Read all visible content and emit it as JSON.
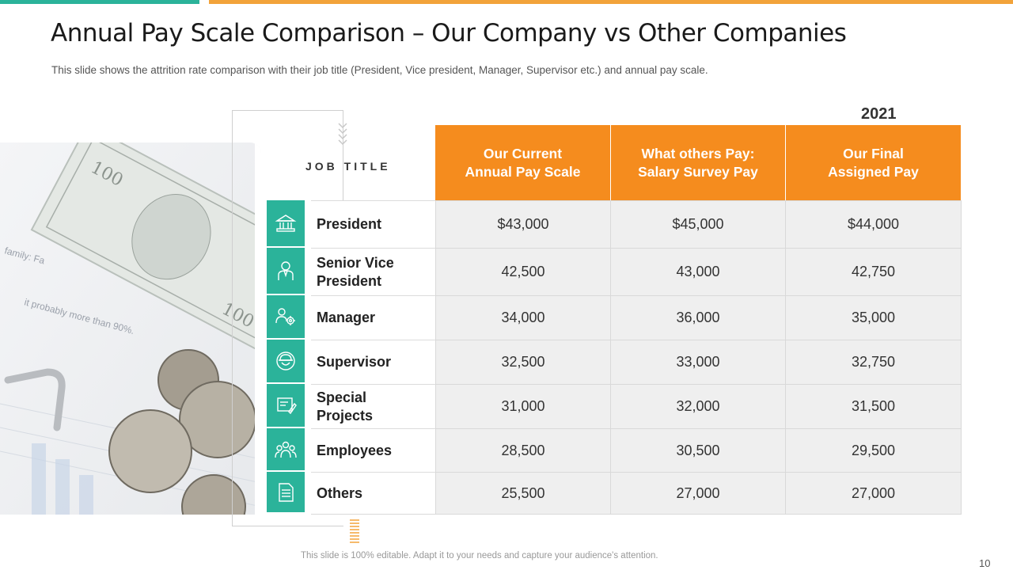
{
  "slide": {
    "title": "Annual Pay Scale Comparison – Our Company vs Other Companies",
    "subtitle": "This slide shows the attrition rate comparison with their job title (President, Vice president, Manager, Supervisor etc.) and annual pay scale.",
    "job_title_label": "JOB TITLE",
    "year": "2021",
    "footer": "This slide is 100% editable. Adapt it to your needs and capture your audience's attention.",
    "page_number": "10"
  },
  "colors": {
    "teal": "#2bb39a",
    "orange": "#f58c1e",
    "light_orange": "#f2a33a"
  },
  "table": {
    "headers": [
      "Our Current\nAnnual Pay Scale",
      "What others Pay:\nSalary Survey Pay",
      "Our Final\nAssigned Pay"
    ],
    "rows": [
      {
        "icon": "building-icon",
        "label": "President",
        "values": [
          "$43,000",
          "$45,000",
          "$44,000"
        ]
      },
      {
        "icon": "executive-person-icon",
        "label": "Senior Vice\nPresident",
        "values": [
          "42,500",
          "43,000",
          "42,750"
        ]
      },
      {
        "icon": "manager-gear-icon",
        "label": "Manager",
        "values": [
          "34,000",
          "36,000",
          "35,000"
        ]
      },
      {
        "icon": "supervisor-helmet-icon",
        "label": "Supervisor",
        "values": [
          "32,500",
          "33,000",
          "32,750"
        ]
      },
      {
        "icon": "project-board-icon",
        "label": "Special\nProjects",
        "values": [
          "31,000",
          "32,000",
          "31,500"
        ]
      },
      {
        "icon": "team-people-icon",
        "label": "Employees",
        "values": [
          "28,500",
          "30,500",
          "29,500"
        ]
      },
      {
        "icon": "document-icon",
        "label": "Others",
        "values": [
          "25,500",
          "27,000",
          "27,000"
        ]
      }
    ]
  }
}
